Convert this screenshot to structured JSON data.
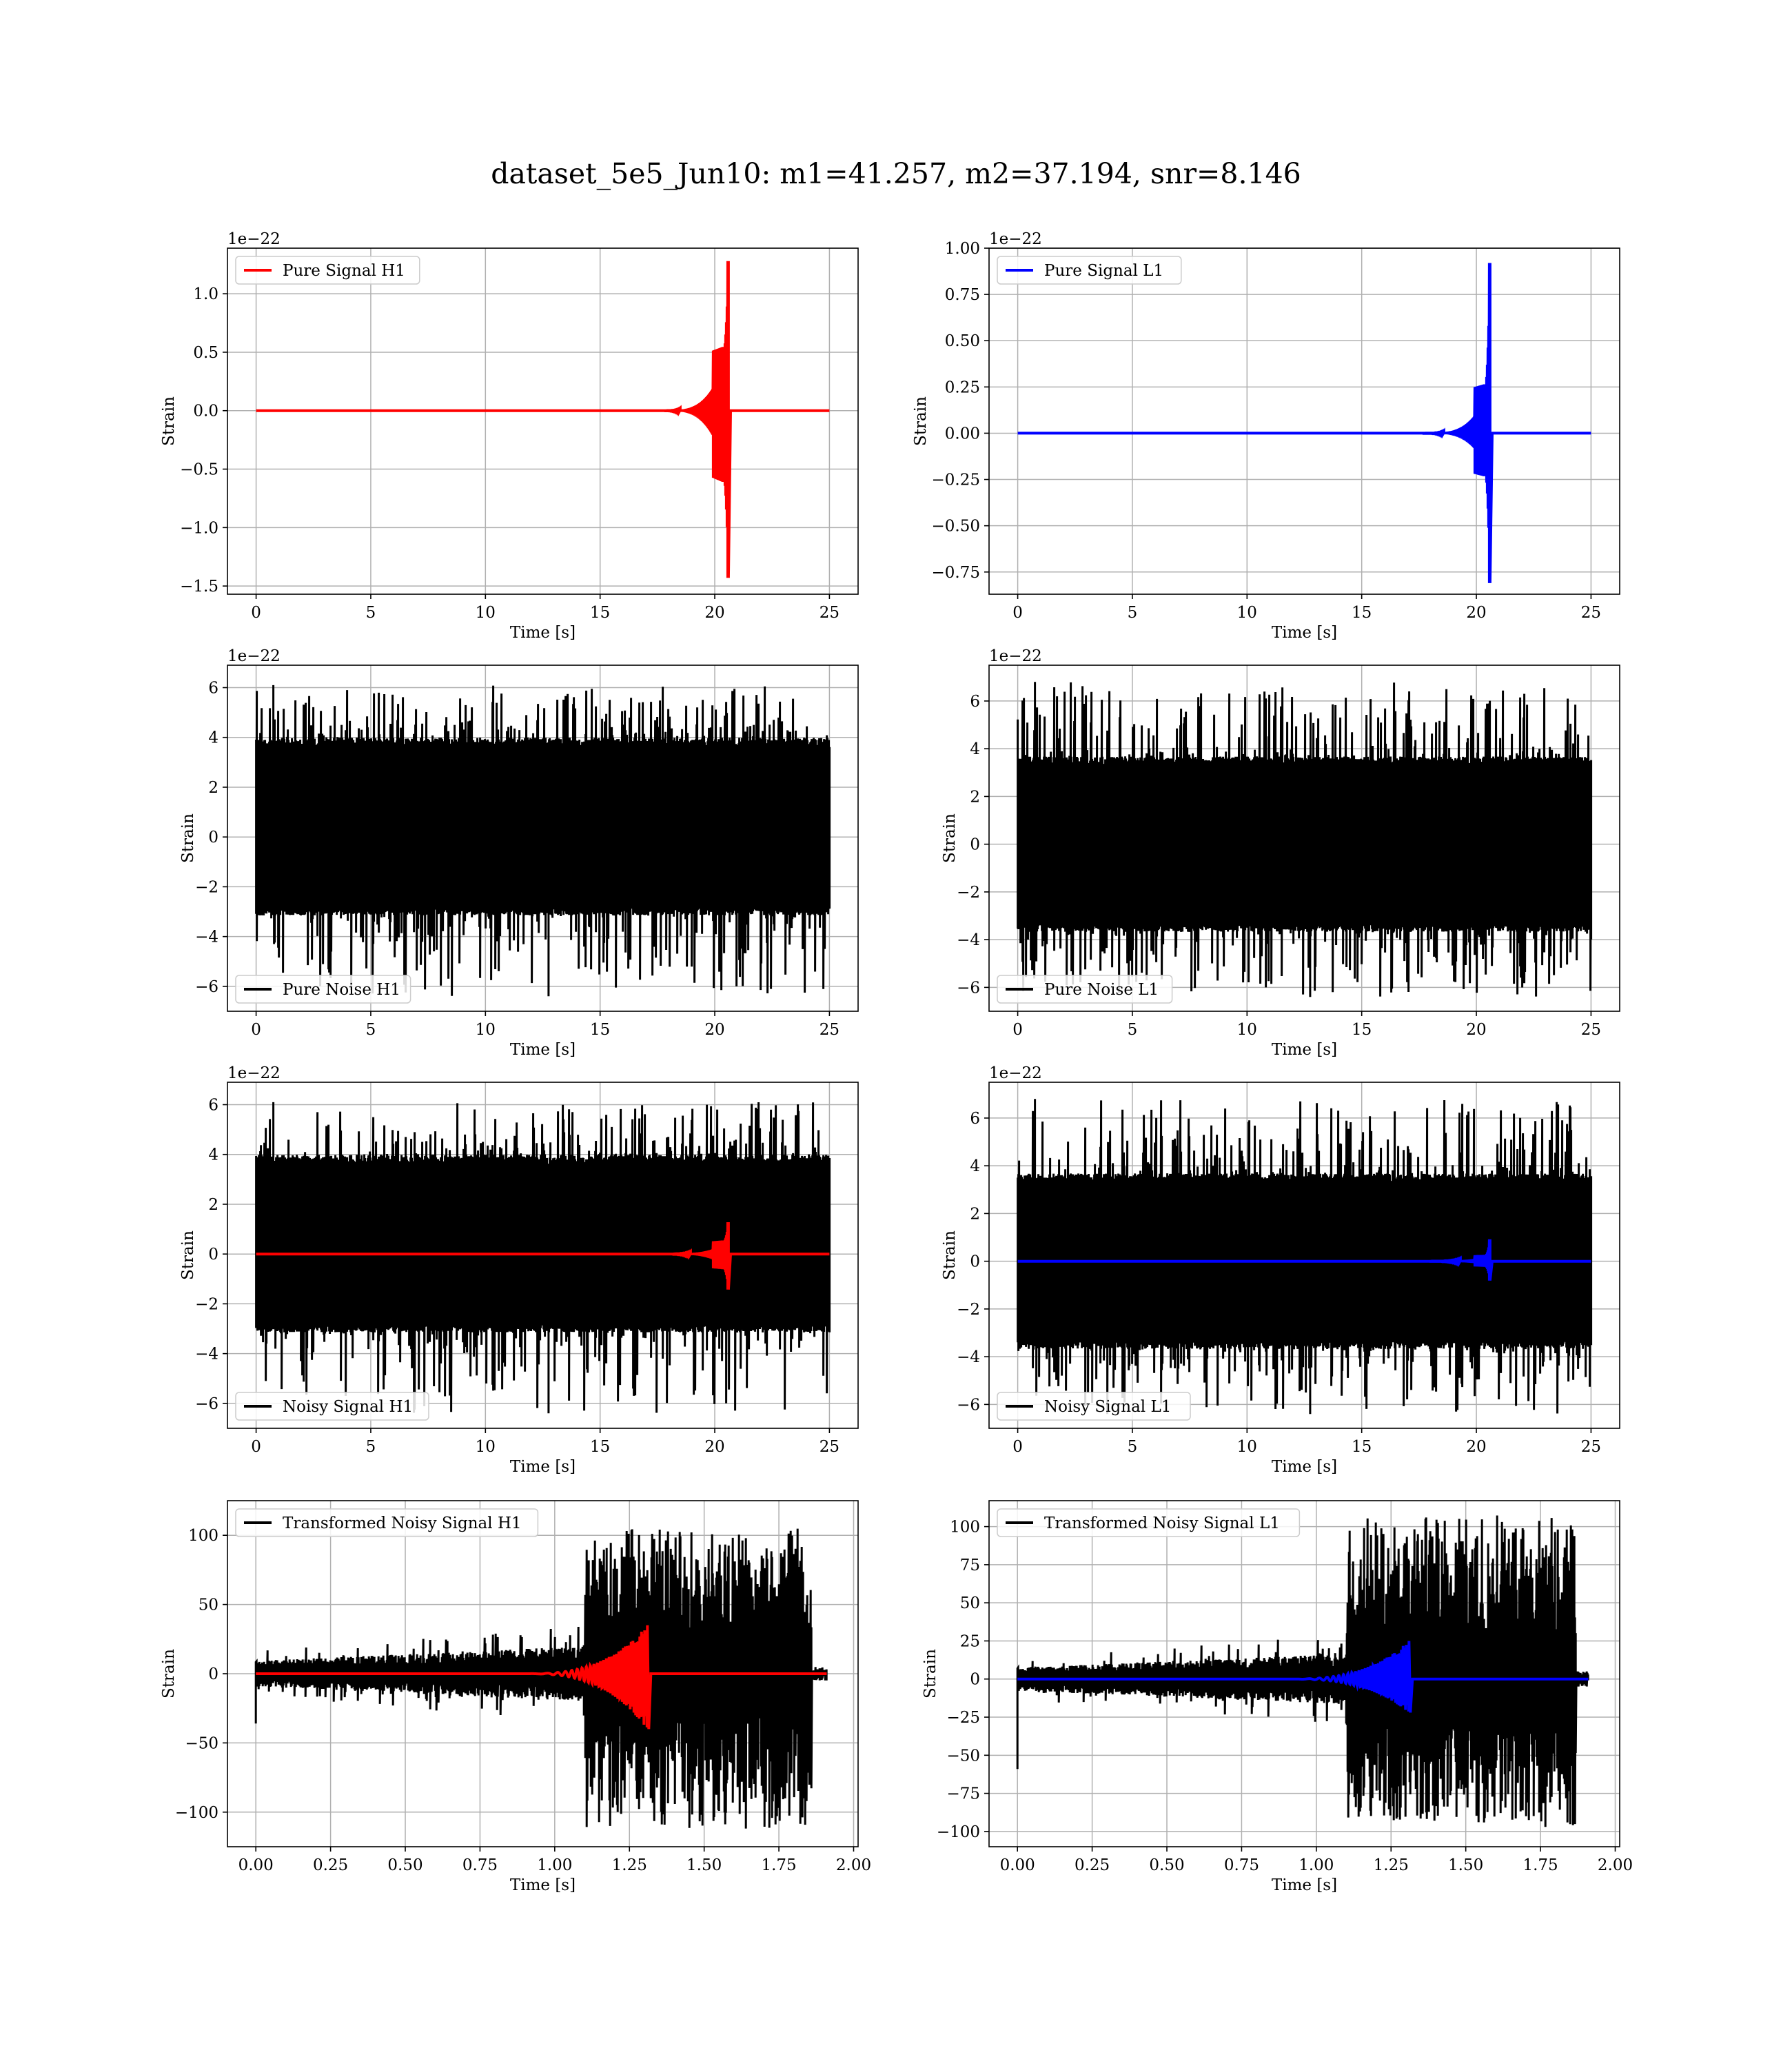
{
  "suptitle": "dataset_5e5_Jun10: m1=41.257, m2=37.194, snr=8.146",
  "colors": {
    "h1_signal": "#ff0000",
    "l1_signal": "#0000ff",
    "noise": "#000000",
    "grid": "#b0b0b0"
  },
  "chart_data": [
    {
      "id": "pure-signal-h1",
      "type": "line",
      "xlabel": "Time [s]",
      "ylabel": "Strain",
      "offset_text": "1e−22",
      "xlim": [
        -1.25,
        26.25
      ],
      "ylim": [
        -1.57,
        1.39
      ],
      "xticks": [
        0,
        5,
        10,
        15,
        20,
        25
      ],
      "xtick_labels": [
        "0",
        "5",
        "10",
        "15",
        "20",
        "25"
      ],
      "yticks": [
        -1.5,
        -1.0,
        -0.5,
        0.0,
        0.5,
        1.0
      ],
      "ytick_labels": [
        "−1.5",
        "−1.0",
        "−0.5",
        "0.0",
        "0.5",
        "1.0"
      ],
      "legend": {
        "position": "upper left",
        "entries": [
          {
            "label": "Pure Signal H1",
            "color": "#ff0000"
          }
        ]
      },
      "grid": true,
      "series": [
        {
          "name": "Pure Signal H1",
          "color": "#ff0000",
          "kind": "chirp",
          "x_start": 0,
          "x_end": 25,
          "onset": 17.5,
          "peak_time": 20.6,
          "peak_max": 1.28,
          "peak_min": -1.43,
          "shoulder": 0.4
        }
      ]
    },
    {
      "id": "pure-signal-l1",
      "type": "line",
      "xlabel": "Time [s]",
      "ylabel": "Strain",
      "offset_text": "1e−22",
      "xlim": [
        -1.25,
        26.25
      ],
      "ylim": [
        -0.87,
        1.0
      ],
      "xticks": [
        0,
        5,
        10,
        15,
        20,
        25
      ],
      "xtick_labels": [
        "0",
        "5",
        "10",
        "15",
        "20",
        "25"
      ],
      "yticks": [
        -0.75,
        -0.5,
        -0.25,
        0.0,
        0.25,
        0.5,
        0.75,
        1.0
      ],
      "ytick_labels": [
        "−0.75",
        "−0.50",
        "−0.25",
        "0.00",
        "0.25",
        "0.50",
        "0.75",
        "1.00"
      ],
      "legend": {
        "position": "upper left",
        "entries": [
          {
            "label": "Pure Signal L1",
            "color": "#0000ff"
          }
        ]
      },
      "grid": true,
      "series": [
        {
          "name": "Pure Signal L1",
          "color": "#0000ff",
          "kind": "chirp",
          "x_start": 0,
          "x_end": 25,
          "onset": 17.5,
          "peak_time": 20.6,
          "peak_max": 0.92,
          "peak_min": -0.81,
          "shoulder": 0.27
        }
      ]
    },
    {
      "id": "pure-noise-h1",
      "type": "line",
      "xlabel": "Time [s]",
      "ylabel": "Strain",
      "offset_text": "1e−22",
      "xlim": [
        -1.25,
        26.25
      ],
      "ylim": [
        -7.0,
        6.9
      ],
      "xticks": [
        0,
        5,
        10,
        15,
        20,
        25
      ],
      "xtick_labels": [
        "0",
        "5",
        "10",
        "15",
        "20",
        "25"
      ],
      "yticks": [
        -6,
        -4,
        -2,
        0,
        2,
        4,
        6
      ],
      "ytick_labels": [
        "−6",
        "−4",
        "−2",
        "0",
        "2",
        "4",
        "6"
      ],
      "legend": {
        "position": "lower left",
        "entries": [
          {
            "label": "Pure Noise H1",
            "color": "#000000"
          }
        ]
      },
      "grid": true,
      "series": [
        {
          "name": "Pure Noise H1",
          "color": "#000000",
          "kind": "noise",
          "x_start": 0,
          "x_end": 25,
          "band": [
            -3.0,
            3.8
          ],
          "max": 6.1,
          "min": -6.4
        }
      ]
    },
    {
      "id": "pure-noise-l1",
      "type": "line",
      "xlabel": "Time [s]",
      "ylabel": "Strain",
      "offset_text": "1e−22",
      "xlim": [
        -1.25,
        26.25
      ],
      "ylim": [
        -7.0,
        7.5
      ],
      "xticks": [
        0,
        5,
        10,
        15,
        20,
        25
      ],
      "xtick_labels": [
        "0",
        "5",
        "10",
        "15",
        "20",
        "25"
      ],
      "yticks": [
        -6,
        -4,
        -2,
        0,
        2,
        4,
        6
      ],
      "ytick_labels": [
        "−6",
        "−4",
        "−2",
        "0",
        "2",
        "4",
        "6"
      ],
      "legend": {
        "position": "lower left",
        "entries": [
          {
            "label": "Pure Noise L1",
            "color": "#000000"
          }
        ]
      },
      "grid": true,
      "series": [
        {
          "name": "Pure Noise L1",
          "color": "#000000",
          "kind": "noise",
          "x_start": 0,
          "x_end": 25,
          "band": [
            -3.5,
            3.5
          ],
          "max": 6.8,
          "min": -6.4
        }
      ]
    },
    {
      "id": "noisy-signal-h1",
      "type": "line",
      "xlabel": "Time [s]",
      "ylabel": "Strain",
      "offset_text": "1e−22",
      "xlim": [
        -1.25,
        26.25
      ],
      "ylim": [
        -7.0,
        6.9
      ],
      "xticks": [
        0,
        5,
        10,
        15,
        20,
        25
      ],
      "xtick_labels": [
        "0",
        "5",
        "10",
        "15",
        "20",
        "25"
      ],
      "yticks": [
        -6,
        -4,
        -2,
        0,
        2,
        4,
        6
      ],
      "ytick_labels": [
        "−6",
        "−4",
        "−2",
        "0",
        "2",
        "4",
        "6"
      ],
      "legend": {
        "position": "lower left",
        "entries": [
          {
            "label": "Noisy Signal H1",
            "color": "#000000"
          }
        ]
      },
      "grid": true,
      "series": [
        {
          "name": "Noisy Signal H1",
          "color": "#000000",
          "kind": "noise",
          "x_start": 0,
          "x_end": 25,
          "band": [
            -3.0,
            3.8
          ],
          "max": 6.1,
          "min": -6.4
        },
        {
          "color": "#ff0000",
          "kind": "chirp",
          "x_start": 0,
          "x_end": 25,
          "onset": 17.5,
          "peak_time": 20.6,
          "peak_max": 1.28,
          "peak_min": -1.43,
          "shoulder": 0.4
        }
      ]
    },
    {
      "id": "noisy-signal-l1",
      "type": "line",
      "xlabel": "Time [s]",
      "ylabel": "Strain",
      "offset_text": "1e−22",
      "xlim": [
        -1.25,
        26.25
      ],
      "ylim": [
        -7.0,
        7.5
      ],
      "xticks": [
        0,
        5,
        10,
        15,
        20,
        25
      ],
      "xtick_labels": [
        "0",
        "5",
        "10",
        "15",
        "20",
        "25"
      ],
      "yticks": [
        -6,
        -4,
        -2,
        0,
        2,
        4,
        6
      ],
      "ytick_labels": [
        "−6",
        "−4",
        "−2",
        "0",
        "2",
        "4",
        "6"
      ],
      "legend": {
        "position": "lower left",
        "entries": [
          {
            "label": "Noisy Signal L1",
            "color": "#000000"
          }
        ]
      },
      "grid": true,
      "series": [
        {
          "name": "Noisy Signal L1",
          "color": "#000000",
          "kind": "noise",
          "x_start": 0,
          "x_end": 25,
          "band": [
            -3.5,
            3.5
          ],
          "max": 6.8,
          "min": -6.4
        },
        {
          "color": "#0000ff",
          "kind": "chirp",
          "x_start": 0,
          "x_end": 25,
          "onset": 17.5,
          "peak_time": 20.6,
          "peak_max": 0.92,
          "peak_min": -0.81,
          "shoulder": 0.27
        }
      ]
    },
    {
      "id": "transformed-noisy-signal-h1",
      "type": "line",
      "xlabel": "Time [s]",
      "ylabel": "Strain",
      "offset_text": "",
      "xlim": [
        -0.095,
        2.015
      ],
      "ylim": [
        -125,
        125
      ],
      "xticks": [
        0.0,
        0.25,
        0.5,
        0.75,
        1.0,
        1.25,
        1.5,
        1.75,
        2.0
      ],
      "xtick_labels": [
        "0.00",
        "0.25",
        "0.50",
        "0.75",
        "1.00",
        "1.25",
        "1.50",
        "1.75",
        "2.00"
      ],
      "yticks": [
        -100,
        -50,
        0,
        50,
        100
      ],
      "ytick_labels": [
        "−100",
        "−50",
        "0",
        "50",
        "100"
      ],
      "legend": {
        "position": "upper left",
        "entries": [
          {
            "label": "Transformed Noisy Signal H1",
            "color": "#000000"
          }
        ]
      },
      "grid": true,
      "series": [
        {
          "name": "Transformed Noisy Signal H1",
          "color": "#000000",
          "kind": "whitened",
          "x_start": 0,
          "x_end": 1.91,
          "burst_start": 1.1,
          "burst_end": 1.86,
          "quiet_amp": 12,
          "burst_max": 105,
          "burst_min": -112,
          "spike_start": -36
        },
        {
          "color": "#ff0000",
          "kind": "whitened-chirp",
          "x_start": 0,
          "x_end": 1.91,
          "onset": 0.88,
          "peak_time": 1.31,
          "peak_max": 35,
          "peak_min": -40
        }
      ]
    },
    {
      "id": "transformed-noisy-signal-l1",
      "type": "line",
      "xlabel": "Time [s]",
      "ylabel": "Strain",
      "offset_text": "",
      "xlim": [
        -0.095,
        2.015
      ],
      "ylim": [
        -110,
        117
      ],
      "xticks": [
        0.0,
        0.25,
        0.5,
        0.75,
        1.0,
        1.25,
        1.5,
        1.75,
        2.0
      ],
      "xtick_labels": [
        "0.00",
        "0.25",
        "0.50",
        "0.75",
        "1.00",
        "1.25",
        "1.50",
        "1.75",
        "2.00"
      ],
      "yticks": [
        -100,
        -75,
        -50,
        -25,
        0,
        25,
        50,
        75,
        100
      ],
      "ytick_labels": [
        "−100",
        "−75",
        "−50",
        "−25",
        "0",
        "25",
        "50",
        "75",
        "100"
      ],
      "legend": {
        "position": "upper left",
        "entries": [
          {
            "label": "Transformed Noisy Signal L1",
            "color": "#000000"
          }
        ]
      },
      "grid": true,
      "series": [
        {
          "name": "Transformed Noisy Signal L1",
          "color": "#000000",
          "kind": "whitened",
          "x_start": 0,
          "x_end": 1.91,
          "burst_start": 1.1,
          "burst_end": 1.87,
          "quiet_amp": 10,
          "burst_max": 108,
          "burst_min": -97,
          "spike_start": -59
        },
        {
          "color": "#0000ff",
          "kind": "whitened-chirp",
          "x_start": 0,
          "x_end": 1.91,
          "onset": 0.88,
          "peak_time": 1.31,
          "peak_max": 25,
          "peak_min": -22
        }
      ]
    }
  ]
}
